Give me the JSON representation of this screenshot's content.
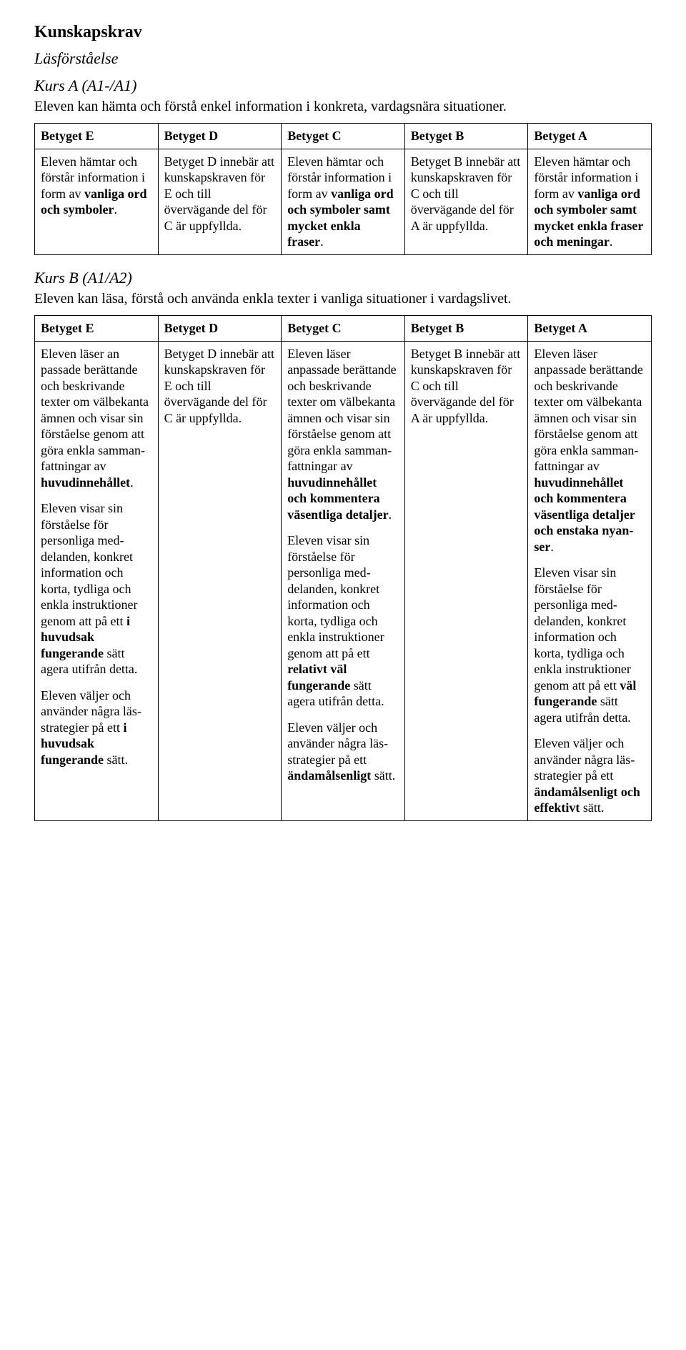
{
  "title": "Kunskapskrav",
  "section1": {
    "subhead": "Läsförståelse",
    "kurs": "Kurs A (A1-/A1)",
    "intro_pre": "Eleven kan hämta och förstå enkel information i konkreta, vardagsnära situa",
    "intro_post": "tioner.",
    "headers": {
      "e": "Betyget E",
      "d": "Betyget D",
      "c": "Betyget C",
      "b": "Betyget B",
      "a": "Betyget A"
    },
    "row": {
      "e_pre": "Eleven hämtar och förstår in",
      "e_mid": "formation i form av ",
      "e_bold": "vanliga ord och symboler",
      "e_post": ".",
      "d_pre": "Betyget D innebär att kunskapskraven för E och till övervägande del för C är uppfyllda.",
      "c_pre": "Eleven hämtar och förstår in",
      "c_mid": "formation i form av ",
      "c_bold": "vanliga ord och symboler samt mycket enkla fraser",
      "c_post": ".",
      "b_pre": "Betyget B innebär att kunskapskraven för C och till övervägande del för A är uppfyllda.",
      "a_pre": "Eleven hämtar och förstår in",
      "a_mid": "formation i form av ",
      "a_bold": "vanliga ord och symboler samt mycket enkla fraser och meningar",
      "a_post": "."
    }
  },
  "section2": {
    "kurs": "Kurs B (A1/A2)",
    "intro_pre": "Eleven kan läsa, förstå och använda enkla texter i vanliga situationer i var",
    "intro_post": "dagslivet.",
    "headers": {
      "e": "Betyget E",
      "d": "Betyget D",
      "c": "Betyget C",
      "b": "Betyget B",
      "a": "Betyget A"
    },
    "r1": {
      "e_1": "Eleven läser an",
      "e_2": "passade berät",
      "e_3": "tande och be",
      "e_4": "skrivande texter om välbekanta ämnen och visar sin förståelse genom att göra enkla samman",
      "e_5": "fattningar av ",
      "e_bold": "huvudinne­hållet",
      "e_6": ".",
      "d": "Betyget D innebär att kunskapskraven för E och till övervägande del för C är uppfyllda.",
      "c_1": "Eleven läser anpassade berät",
      "c_2": "tande och be",
      "c_3": "skrivande texter om välbekanta ämnen och visar sin förståelse genom att göra enkla samman",
      "c_4": "fattningar av ",
      "c_bold": "huvudinne­hållet och kommentera väsentliga detaljer",
      "c_5": ".",
      "b": "Betyget B innebär att kunskapskraven för C och till övervägande del för A är uppfyllda.",
      "a_1": "Eleven läser anpassade berät",
      "a_2": "tande och be",
      "a_3": "skrivande texter om välbekanta ämnen och visar sin förståelse genom att göra enkla samman",
      "a_4": "fattningar av ",
      "a_bold": "huvudinne­hållet och kommentera väsentliga detaljer och enstaka nyan­ser",
      "a_5": "."
    },
    "r2": {
      "e_1": "Eleven visar sin förståelse för personliga med",
      "e_2": "delanden, kon",
      "e_3": "kret information och korta, tyd",
      "e_4": "liga och enkla instruktioner genom att på ett ",
      "e_bold": "i huvudsak fungerande",
      "e_5": " sätt agera utifrån detta.",
      "c_1": "Eleven visar sin förståelse för personliga med",
      "c_2": "delanden, kon",
      "c_3": "kret information och korta, tyd",
      "c_4": "liga och enkla instruktioner genom att på ett ",
      "c_bold": "relativt väl fungerande",
      "c_5": " sätt agera utifrån detta.",
      "a_1": "Eleven visar sin förståelse för personliga med",
      "a_2": "delanden, kon",
      "a_3": "kret information och korta, tyd",
      "a_4": "liga och enkla instruktioner genom att på ett ",
      "a_bold": "väl fungerande",
      "a_5": " sätt agera uti",
      "a_6": "från detta."
    },
    "r3": {
      "e_1": "Eleven väljer och använder några läs",
      "e_2": "strategier på ett ",
      "e_bold": "i huvudsak fungerande",
      "e_3": " sätt.",
      "c_1": "Eleven väljer och använder några läs",
      "c_2": "strategier på ett ",
      "c_bold": "ändamålsenligt",
      "c_3": " sätt.",
      "a_1": "Eleven väljer och använder några läs",
      "a_2": "strategier på ett ",
      "a_bold": "ändamålsenligt och effektivt",
      "a_3": " sätt."
    }
  }
}
